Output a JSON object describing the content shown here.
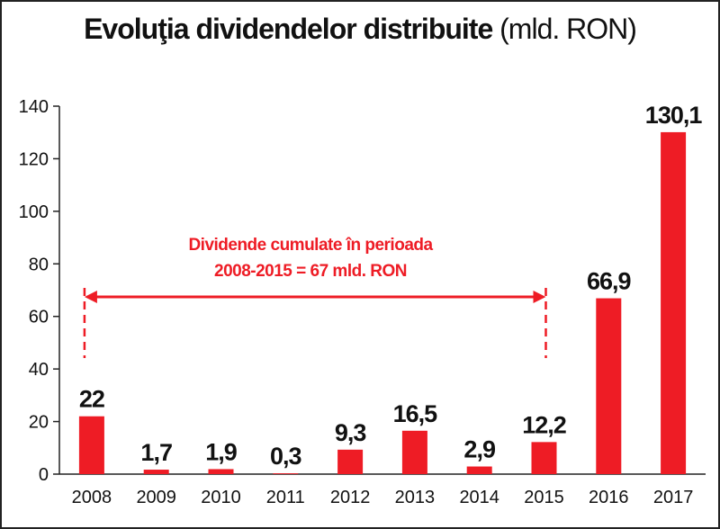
{
  "chart_data": {
    "type": "bar",
    "title": "Evoluţia dividendelor distribuite",
    "title_unit": "(mld. RON)",
    "xlabel": "",
    "ylabel": "",
    "ylim": [
      0,
      140
    ],
    "yticks": [
      0,
      20,
      40,
      60,
      80,
      100,
      120,
      140
    ],
    "grid": false,
    "categories": [
      "2008",
      "2009",
      "2010",
      "2011",
      "2012",
      "2013",
      "2014",
      "2015",
      "2016",
      "2017"
    ],
    "values": [
      22,
      1.7,
      1.9,
      0.3,
      9.3,
      16.5,
      2.9,
      12.2,
      66.9,
      130.1
    ],
    "value_labels": [
      "22",
      "1,7",
      "1,9",
      "0,3",
      "9,3",
      "16,5",
      "2,9",
      "12,2",
      "66,9",
      "130,1"
    ],
    "bar_color": "#ee1c25",
    "annotation": {
      "line1": "Dividende cumulate în perioada",
      "line2": "2008-2015 = 67 mld. RON",
      "from_category": "2008",
      "to_category": "2015",
      "color": "#ee1c25"
    }
  }
}
